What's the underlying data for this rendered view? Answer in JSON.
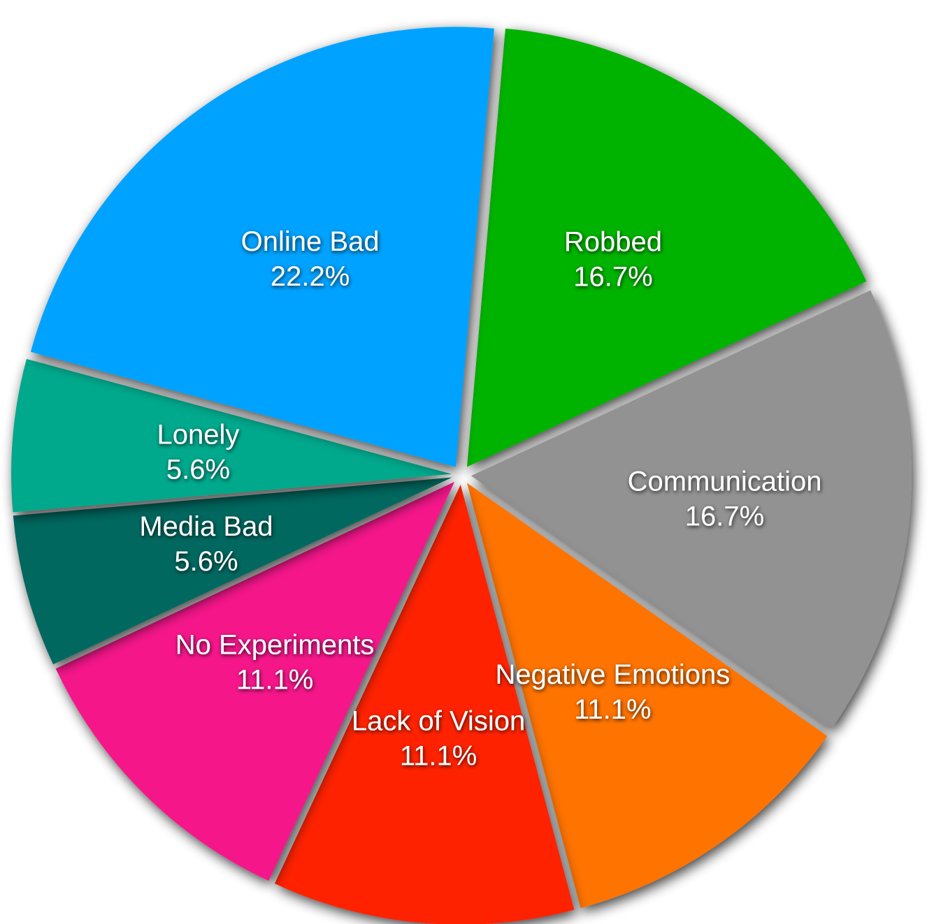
{
  "chart_data": {
    "type": "pie",
    "title": "",
    "slices": [
      {
        "label": "Robbed",
        "value_label": "16.7%",
        "value": 16.7,
        "color": "#00b300"
      },
      {
        "label": "Communication",
        "value_label": "16.7%",
        "value": 16.7,
        "color": "#929292"
      },
      {
        "label": "Negative Emotions",
        "value_label": "11.1%",
        "value": 11.1,
        "color": "#ff7300"
      },
      {
        "label": "Lack of Vision",
        "value_label": "11.1%",
        "value": 11.1,
        "color": "#ff2200"
      },
      {
        "label": "No Experiments",
        "value_label": "11.1%",
        "value": 11.1,
        "color": "#f5148a"
      },
      {
        "label": "Media Bad",
        "value_label": "5.6%",
        "value": 5.6,
        "color": "#00675f"
      },
      {
        "label": "Lonely",
        "value_label": "5.6%",
        "value": 5.6,
        "color": "#00a88c"
      },
      {
        "label": "Online Bad",
        "value_label": "22.2%",
        "value": 22.2,
        "color": "#00a2ff"
      }
    ],
    "start_angle_deg": 5,
    "direction": "clockwise",
    "exploded": true,
    "shadow": true,
    "legend": "none"
  }
}
